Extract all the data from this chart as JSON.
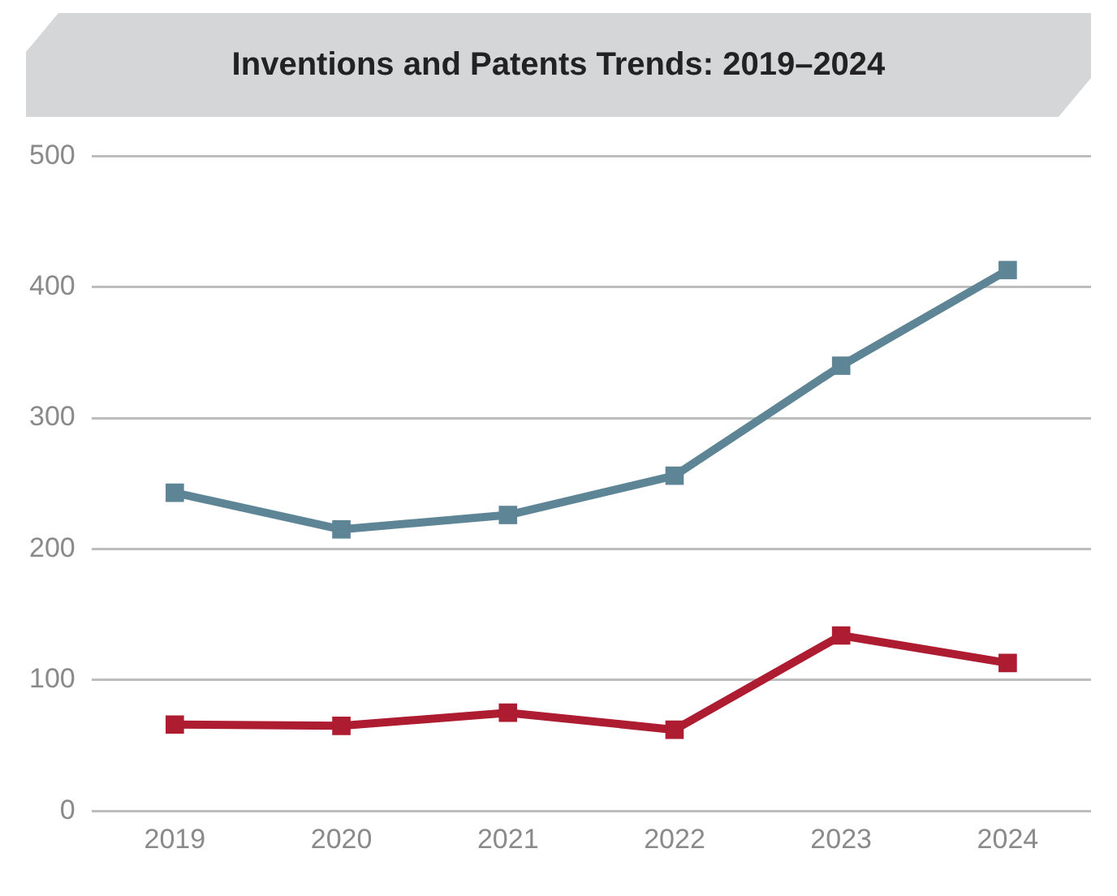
{
  "chart_data": {
    "type": "line",
    "title": "Inventions and Patents Trends: 2019–2024",
    "categories": [
      "2019",
      "2020",
      "2021",
      "2022",
      "2023",
      "2024"
    ],
    "series": [
      {
        "color": "#5e8596",
        "values": [
          243,
          215,
          226,
          256,
          340,
          413
        ]
      },
      {
        "color": "#ad1c30",
        "values": [
          66,
          65,
          75,
          62,
          134,
          113
        ]
      }
    ],
    "ylim": [
      0,
      500
    ],
    "yticks": [
      0,
      100,
      200,
      300,
      400,
      500
    ],
    "grid": "y",
    "marker": "square",
    "legend": false
  }
}
